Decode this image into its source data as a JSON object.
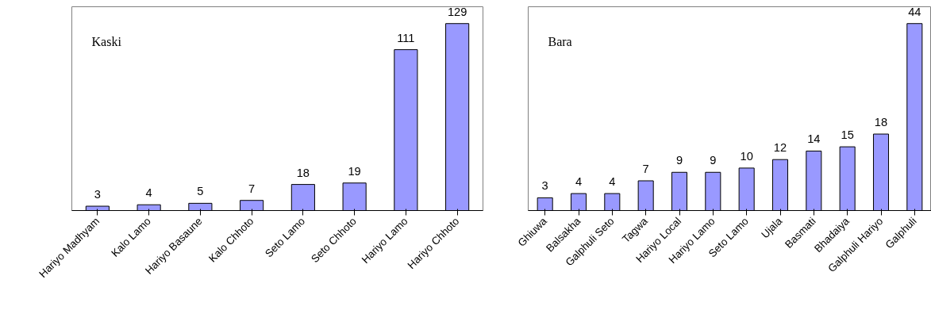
{
  "chart_data": [
    {
      "type": "bar",
      "title": "Kaski",
      "categories": [
        "Hariyo Madhyam",
        "Kalo Lamo",
        "Hariyo Basaune",
        "Kalo Chhoto",
        "Seto Lamo",
        "Seto Chhoto",
        "Hariyo Lamo",
        "Hariyo Chhoto"
      ],
      "values": [
        3,
        4,
        5,
        7,
        18,
        19,
        111,
        129
      ],
      "color": "#9999ff",
      "data_labels": true,
      "grid": false
    },
    {
      "type": "bar",
      "title": "Bara",
      "categories": [
        "Ghiuwa",
        "Balsakha",
        "Galphuli Seto",
        "Tagwa",
        "Hariyo Local",
        "Hariyo Lamo",
        "Seto Lamo",
        "Ujala",
        "Basmati",
        "Bhadaiya",
        "Galphuli Hariyo",
        "Galphuli"
      ],
      "values": [
        3,
        4,
        4,
        7,
        9,
        9,
        10,
        12,
        14,
        15,
        18,
        44
      ],
      "color": "#9999ff",
      "data_labels": true,
      "grid": false
    }
  ]
}
